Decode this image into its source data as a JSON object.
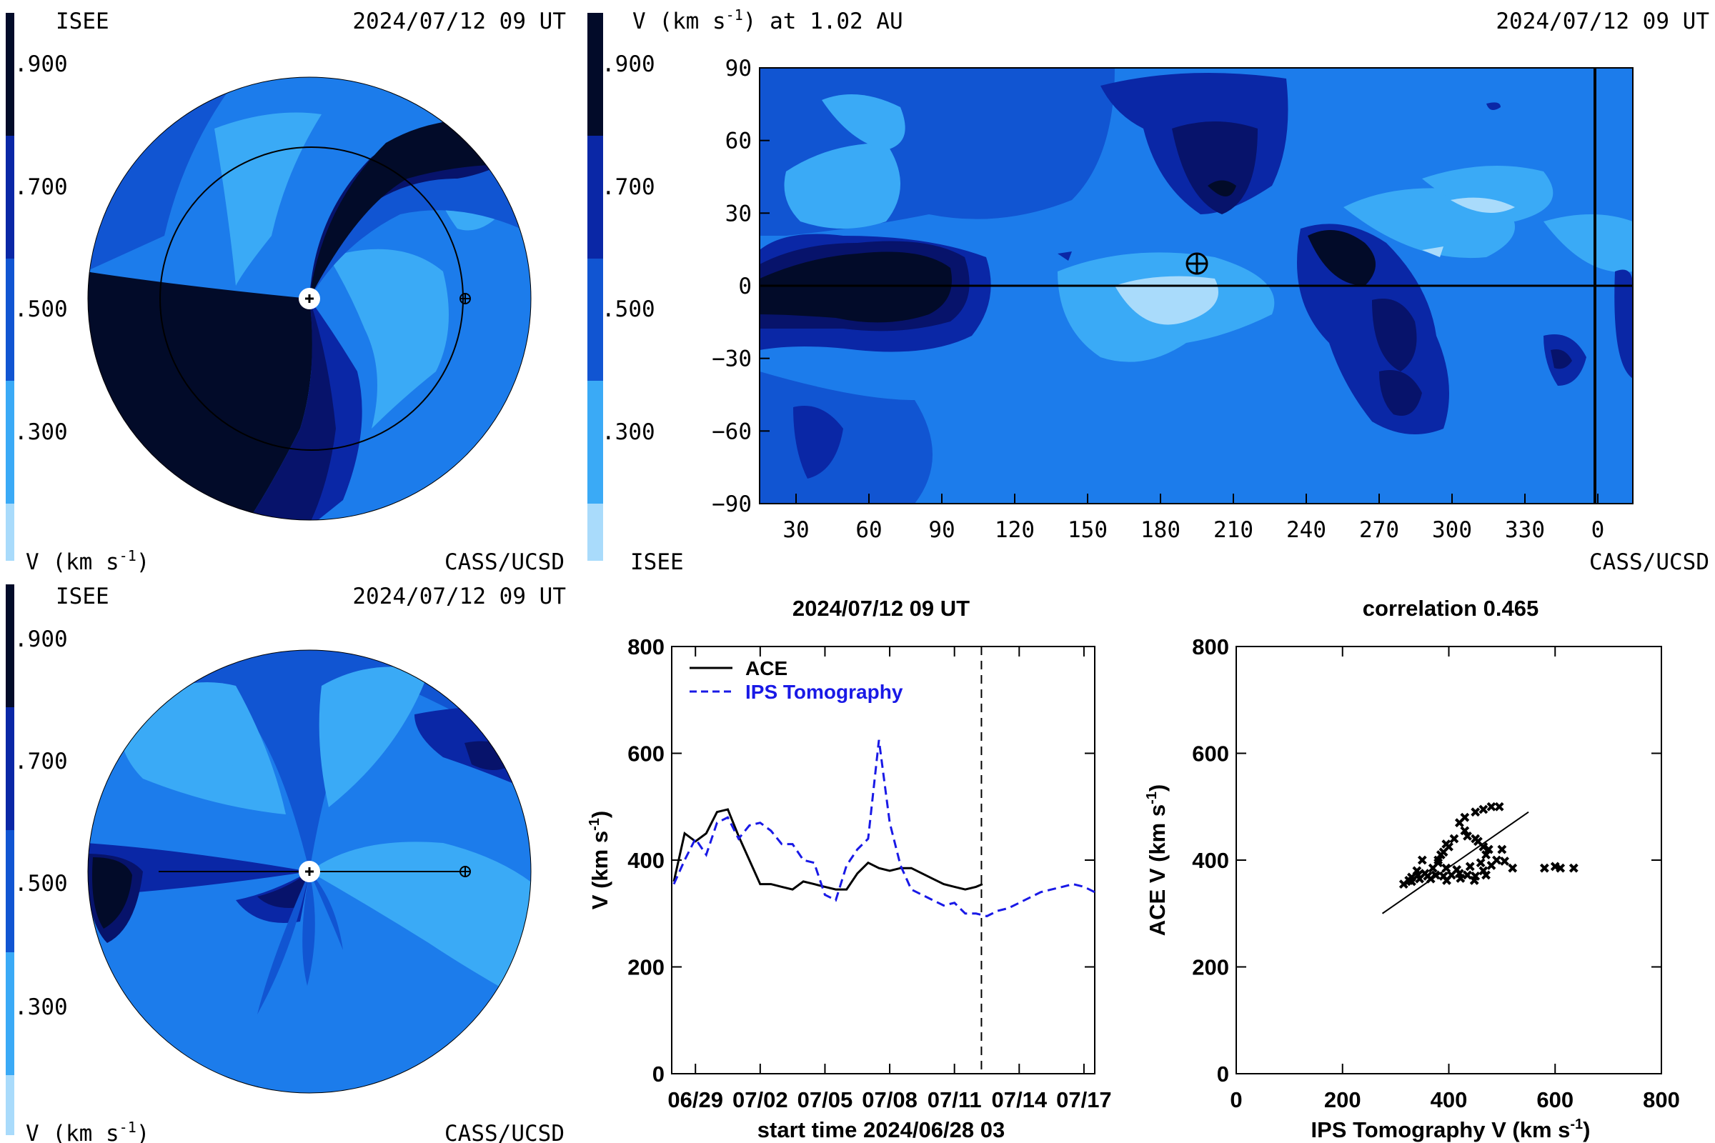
{
  "palette": [
    "#a9dbfb",
    "#3aaaf6",
    "#1c7ceb",
    "#1155d2",
    "#0a27a6",
    "#07136b",
    "#020b29"
  ],
  "top_left": {
    "left_label": "ISEE",
    "timestamp": "2024/07/12 09 UT",
    "bottom_left": "V (km s",
    "bottom_left_sup": "-1",
    "bottom_left_close": ")",
    "bottom_right": "CASS/UCSD",
    "colorbar_ticks": [
      ".900",
      ".700",
      ".500",
      ".300"
    ]
  },
  "top_right": {
    "header_left": "V (km s",
    "header_sup": "-1",
    "header_close": ") at 1.02 AU",
    "timestamp": "2024/07/12 09 UT",
    "colorbar_ticks": [
      ".900",
      ".700",
      ".500",
      ".300"
    ],
    "bottom_left": "ISEE",
    "bottom_right": "CASS/UCSD"
  },
  "bottom_left": {
    "left_label": "ISEE",
    "timestamp": "2024/07/12 09 UT",
    "bottom_left": "V (km s",
    "bottom_left_sup": "-1",
    "bottom_left_close": ")",
    "bottom_right": "CASS/UCSD",
    "colorbar_ticks": [
      ".900",
      ".700",
      ".500",
      ".300"
    ]
  },
  "chart_data": [
    {
      "type": "heatmap",
      "title": "V (km s-1) at 1.02 AU",
      "x_ticks": [
        "30",
        "60",
        "90",
        "120",
        "150",
        "180",
        "210",
        "240",
        "270",
        "300",
        "330",
        "0"
      ],
      "y_ticks": [
        "90",
        "60",
        "30",
        "0",
        "−30",
        "−60",
        "−90"
      ],
      "ylim": [
        -90,
        90
      ],
      "earth_marker": {
        "longitude": 195,
        "latitude": 5
      }
    },
    {
      "type": "line",
      "title": "2024/07/12 09 UT",
      "xlabel": "start time 2024/06/28 03",
      "ylabel": "V (km s",
      "ylabel_sup": "-1",
      "ylabel_close": ")",
      "x_ticks": [
        "06/29",
        "07/02",
        "07/05",
        "07/08",
        "07/11",
        "07/14",
        "07/17"
      ],
      "y_ticks": [
        "0",
        "200",
        "400",
        "600",
        "800"
      ],
      "ylim": [
        0,
        800
      ],
      "xlim_days": [
        -0.1,
        19.5
      ],
      "now_day": 14.25,
      "series": [
        {
          "name": "ACE",
          "style": "solid",
          "color": "#000000",
          "x": [
            0,
            0.5,
            1,
            1.5,
            2,
            2.5,
            3,
            3.5,
            4,
            4.5,
            5,
            5.5,
            6,
            6.5,
            7,
            7.5,
            8,
            8.5,
            9,
            9.5,
            10,
            10.5,
            11,
            11.5,
            12,
            12.5,
            13,
            13.5,
            14,
            14.3
          ],
          "values": [
            360,
            450,
            435,
            450,
            490,
            495,
            445,
            400,
            355,
            355,
            350,
            345,
            360,
            355,
            350,
            345,
            345,
            375,
            395,
            385,
            380,
            385,
            385,
            375,
            365,
            355,
            350,
            345,
            350,
            355
          ]
        },
        {
          "name": "IPS Tomography",
          "style": "dashed",
          "color": "#1919e6",
          "x": [
            0,
            0.5,
            1,
            1.5,
            2,
            2.5,
            3,
            3.5,
            4,
            4.5,
            5,
            5.5,
            6,
            6.5,
            7,
            7.5,
            8,
            8.5,
            9,
            9.5,
            10,
            10.5,
            11,
            11.5,
            12,
            12.5,
            13,
            13.5,
            14,
            14.5,
            15,
            15.5,
            16,
            16.5,
            17,
            17.5,
            18,
            18.5,
            19,
            19.5
          ],
          "values": [
            355,
            400,
            440,
            410,
            470,
            480,
            440,
            465,
            470,
            455,
            430,
            430,
            400,
            395,
            335,
            325,
            390,
            420,
            440,
            625,
            470,
            390,
            345,
            335,
            325,
            315,
            320,
            300,
            300,
            295,
            305,
            310,
            320,
            330,
            340,
            345,
            350,
            355,
            350,
            340
          ]
        }
      ]
    },
    {
      "type": "scatter",
      "title": "correlation 0.465",
      "xlabel": "IPS Tomography V (km s",
      "xlabel_sup": "-1",
      "xlabel_close": ")",
      "ylabel": "ACE V (km s",
      "ylabel_sup": "-1",
      "ylabel_close": ")",
      "x_ticks": [
        "0",
        "200",
        "400",
        "600",
        "800"
      ],
      "y_ticks": [
        "0",
        "200",
        "400",
        "600",
        "800"
      ],
      "xlim": [
        0,
        800
      ],
      "ylim": [
        0,
        800
      ],
      "fit_line": [
        [
          275,
          300
        ],
        [
          550,
          490
        ]
      ],
      "points": [
        [
          315,
          355
        ],
        [
          330,
          360
        ],
        [
          345,
          365
        ],
        [
          360,
          370
        ],
        [
          375,
          372
        ],
        [
          390,
          370
        ],
        [
          405,
          372
        ],
        [
          420,
          375
        ],
        [
          435,
          372
        ],
        [
          450,
          370
        ],
        [
          465,
          380
        ],
        [
          480,
          390
        ],
        [
          490,
          400
        ],
        [
          475,
          420
        ],
        [
          455,
          435
        ],
        [
          435,
          445
        ],
        [
          410,
          440
        ],
        [
          395,
          430
        ],
        [
          385,
          410
        ],
        [
          380,
          395
        ],
        [
          395,
          385
        ],
        [
          415,
          382
        ],
        [
          440,
          388
        ],
        [
          460,
          395
        ],
        [
          470,
          410
        ],
        [
          465,
          425
        ],
        [
          450,
          440
        ],
        [
          430,
          455
        ],
        [
          420,
          470
        ],
        [
          430,
          480
        ],
        [
          450,
          490
        ],
        [
          465,
          495
        ],
        [
          480,
          500
        ],
        [
          495,
          500
        ],
        [
          350,
          400
        ],
        [
          340,
          380
        ],
        [
          330,
          368
        ],
        [
          355,
          375
        ],
        [
          370,
          385
        ],
        [
          380,
          400
        ],
        [
          390,
          415
        ],
        [
          400,
          425
        ],
        [
          520,
          385
        ],
        [
          580,
          385
        ],
        [
          600,
          388
        ],
        [
          610,
          385
        ],
        [
          635,
          385
        ],
        [
          325,
          362
        ],
        [
          342,
          372
        ],
        [
          366,
          365
        ],
        [
          396,
          362
        ],
        [
          422,
          366
        ],
        [
          448,
          362
        ],
        [
          470,
          372
        ],
        [
          505,
          398
        ],
        [
          500,
          420
        ]
      ]
    }
  ]
}
